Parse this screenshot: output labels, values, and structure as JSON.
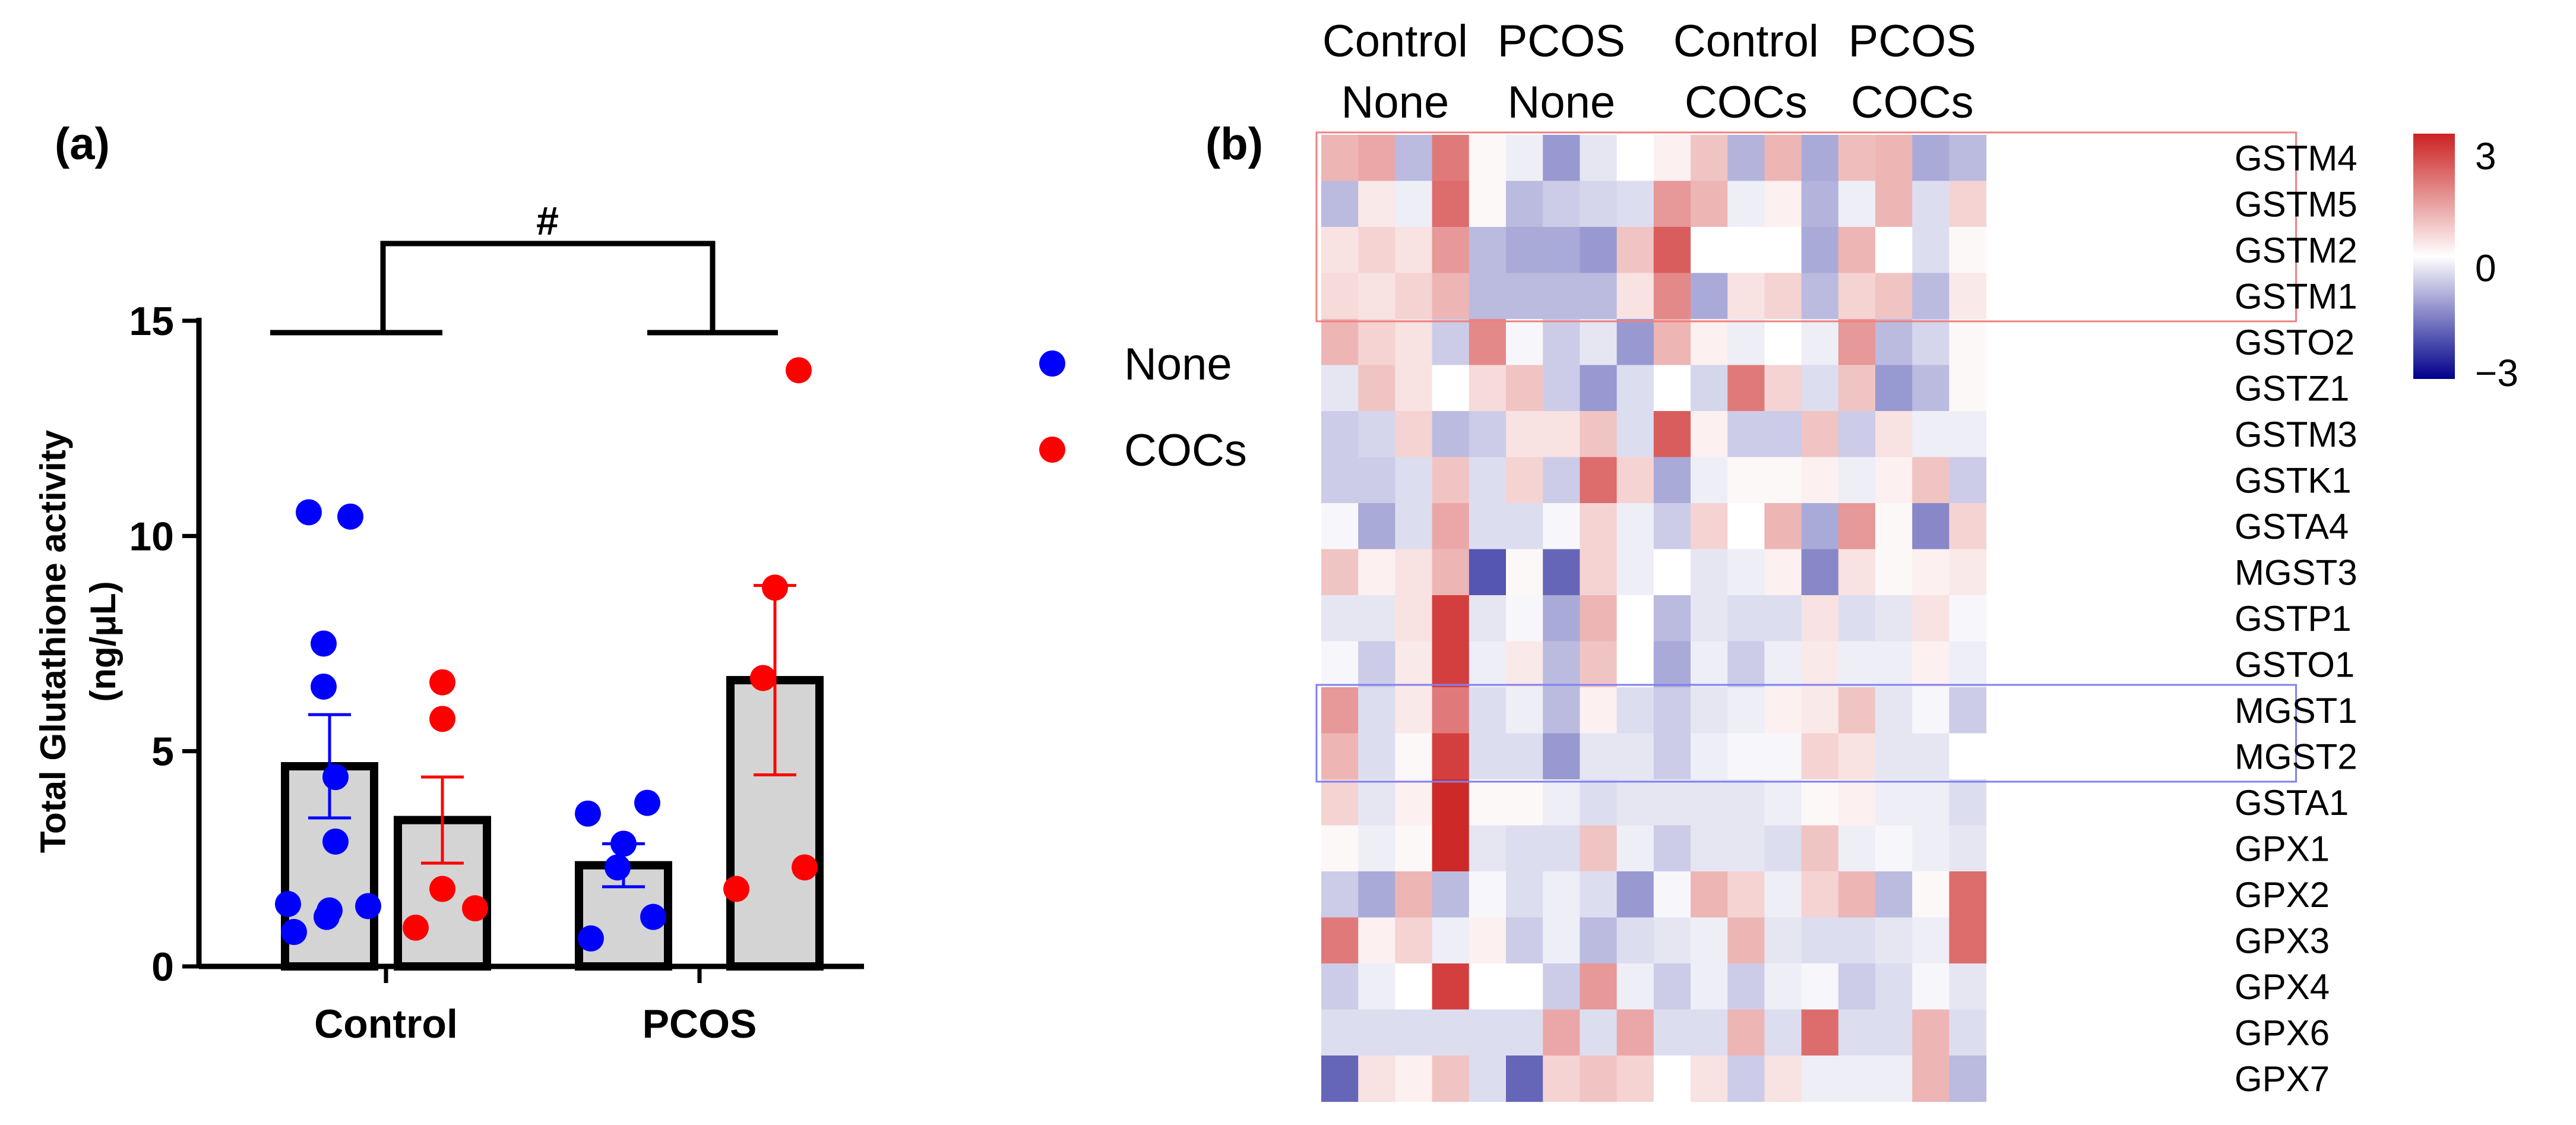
{
  "chart_data": [
    {
      "type": "bar",
      "panel_label": "(a)",
      "ylabel": "Total Glutathione activity\n(ng/μL)",
      "ylim": [
        0,
        15
      ],
      "yticks": [
        0,
        5,
        10,
        15
      ],
      "categories": [
        "Control",
        "PCOS"
      ],
      "significance": "#",
      "series": [
        {
          "name": "None",
          "color": "#0000ff",
          "values": [
            4.65,
            2.35
          ],
          "error": [
            1.2,
            0.5
          ],
          "points": [
            [
              10.55,
              10.45,
              7.5,
              6.5,
              4.4,
              2.9,
              1.45,
              1.4,
              1.3,
              1.15,
              0.8
            ],
            [
              3.55,
              3.8,
              2.85,
              2.3,
              1.15,
              0.65
            ]
          ]
        },
        {
          "name": "COCs",
          "color": "#ff0000",
          "values": [
            3.4,
            6.65
          ],
          "error": [
            1.0,
            2.2
          ],
          "points": [
            [
              6.6,
              5.75,
              1.8,
              1.35,
              0.9
            ],
            [
              13.85,
              8.8,
              6.7,
              2.3,
              1.8
            ]
          ]
        }
      ],
      "legend": [
        {
          "label": "None",
          "color": "#0000ff"
        },
        {
          "label": "COCs",
          "color": "#ff0000"
        }
      ]
    },
    {
      "type": "heatmap",
      "panel_label": "(b)",
      "column_groups": [
        {
          "line1": "Control",
          "line2": "None",
          "n": 4
        },
        {
          "line1": "PCOS",
          "line2": "None",
          "n": 5
        },
        {
          "line1": "Control",
          "line2": "COCs",
          "n": 5
        },
        {
          "line1": "PCOS",
          "line2": "COCs",
          "n": 4
        }
      ],
      "rows": [
        "GSTM4",
        "GSTM5",
        "GSTM2",
        "GSTM1",
        "GSTO2",
        "GSTZ1",
        "GSTM3",
        "GSTK1",
        "GSTA4",
        "MGST3",
        "GSTP1",
        "GSTO1",
        "MGST1",
        "MGST2",
        "GSTA1",
        "GPX1",
        "GPX2",
        "GPX3",
        "GPX4",
        "GPX6",
        "GPX7"
      ],
      "values": [
        [
          1.0,
          1.2,
          -0.8,
          1.8,
          0.1,
          -0.2,
          -1.2,
          -0.3,
          0.0,
          0.2,
          0.8,
          -0.9,
          1.0,
          -1.0,
          0.9,
          1.0,
          -1.0,
          -0.8
        ],
        [
          -0.8,
          0.3,
          -0.2,
          2.0,
          0.1,
          -0.8,
          -0.6,
          -0.5,
          -0.4,
          1.4,
          1.0,
          -0.2,
          0.2,
          -0.9,
          -0.2,
          1.0,
          -0.4,
          0.6
        ],
        [
          0.4,
          0.6,
          0.4,
          1.4,
          -0.8,
          -1.0,
          -1.0,
          -1.2,
          0.8,
          2.2,
          0.0,
          0.0,
          0.0,
          -1.0,
          1.0,
          0.0,
          -0.4,
          0.1
        ],
        [
          0.5,
          0.4,
          0.6,
          1.0,
          -0.8,
          -0.8,
          -0.8,
          -0.8,
          0.4,
          1.6,
          -1.0,
          0.4,
          0.6,
          -0.8,
          0.6,
          0.8,
          -0.8,
          0.3
        ],
        [
          1.0,
          0.6,
          0.4,
          -0.6,
          1.6,
          -0.1,
          -0.6,
          -0.3,
          -1.2,
          1.0,
          0.2,
          -0.2,
          0.0,
          -0.2,
          1.4,
          -0.8,
          -0.5,
          0.1
        ],
        [
          -0.3,
          0.8,
          0.4,
          0.0,
          0.5,
          0.8,
          -0.6,
          -1.2,
          -0.4,
          0.0,
          -0.5,
          1.8,
          0.6,
          -0.4,
          0.8,
          -1.2,
          -0.8,
          0.1
        ],
        [
          -0.6,
          -0.5,
          0.6,
          -0.8,
          -0.6,
          0.4,
          0.4,
          0.8,
          -0.4,
          2.2,
          0.2,
          -0.6,
          -0.6,
          0.8,
          -0.6,
          0.4,
          -0.2,
          -0.2
        ],
        [
          -0.6,
          -0.6,
          -0.4,
          0.8,
          -0.4,
          0.6,
          -0.6,
          2.0,
          0.6,
          -1.0,
          -0.2,
          0.1,
          0.1,
          0.2,
          -0.2,
          0.2,
          0.8,
          -0.6
        ],
        [
          -0.1,
          -1.0,
          -0.4,
          1.2,
          -0.4,
          -0.4,
          -0.1,
          0.6,
          -0.2,
          -0.6,
          0.6,
          0.0,
          1.0,
          -1.0,
          1.4,
          0.1,
          -1.4,
          0.6
        ],
        [
          0.8,
          0.2,
          0.4,
          1.0,
          -2.0,
          0.1,
          -1.8,
          0.6,
          -0.2,
          0.0,
          -0.3,
          -0.2,
          0.2,
          -1.4,
          0.4,
          0.1,
          0.2,
          0.3
        ],
        [
          -0.3,
          -0.3,
          0.4,
          2.6,
          -0.3,
          -0.1,
          -1.0,
          1.0,
          0.0,
          -0.8,
          -0.3,
          -0.4,
          -0.4,
          0.4,
          -0.4,
          -0.3,
          0.4,
          -0.1
        ],
        [
          -0.1,
          -0.6,
          0.3,
          2.6,
          -0.2,
          0.3,
          -0.8,
          0.8,
          0.0,
          -1.0,
          -0.2,
          -0.6,
          -0.2,
          0.3,
          -0.2,
          -0.2,
          0.2,
          -0.2
        ],
        [
          1.4,
          -0.4,
          0.3,
          1.8,
          -0.4,
          -0.2,
          -0.8,
          0.2,
          -0.4,
          -0.6,
          -0.3,
          -0.2,
          0.2,
          0.3,
          0.8,
          -0.3,
          -0.1,
          -0.6
        ],
        [
          1.0,
          -0.4,
          0.1,
          2.6,
          -0.4,
          -0.4,
          -1.2,
          -0.3,
          -0.3,
          -0.6,
          -0.2,
          -0.1,
          -0.1,
          0.6,
          0.4,
          -0.3,
          -0.3,
          0.0
        ],
        [
          0.6,
          -0.3,
          0.2,
          2.9,
          0.1,
          0.1,
          -0.2,
          -0.4,
          -0.3,
          -0.3,
          -0.3,
          -0.3,
          -0.2,
          0.1,
          0.2,
          -0.2,
          -0.2,
          -0.4
        ],
        [
          0.1,
          -0.2,
          0.1,
          2.9,
          -0.3,
          -0.4,
          -0.4,
          0.8,
          -0.2,
          -0.6,
          -0.3,
          -0.3,
          -0.4,
          0.8,
          -0.2,
          -0.1,
          -0.2,
          -0.3
        ],
        [
          -0.6,
          -1.0,
          1.0,
          -0.8,
          -0.1,
          -0.4,
          -0.2,
          -0.4,
          -1.2,
          -0.1,
          1.0,
          0.6,
          -0.2,
          0.6,
          1.0,
          -0.8,
          0.1,
          2.0
        ],
        [
          1.8,
          0.2,
          0.6,
          -0.2,
          0.2,
          -0.6,
          -0.2,
          -0.8,
          -0.4,
          -0.3,
          -0.2,
          1.0,
          -0.3,
          -0.4,
          -0.4,
          -0.3,
          -0.2,
          2.0
        ],
        [
          -0.6,
          -0.2,
          0.0,
          2.6,
          0.0,
          0.0,
          -0.6,
          1.4,
          -0.2,
          -0.6,
          -0.2,
          -0.6,
          -0.2,
          -0.1,
          -0.6,
          -0.4,
          -0.1,
          -0.3
        ],
        [
          -0.4,
          -0.4,
          -0.4,
          -0.4,
          -0.4,
          -0.4,
          1.2,
          -0.4,
          1.2,
          -0.4,
          -0.4,
          1.0,
          -0.4,
          2.0,
          -0.4,
          -0.4,
          1.0,
          -0.4
        ],
        [
          -1.8,
          0.4,
          0.2,
          0.8,
          -0.4,
          -1.8,
          0.6,
          0.8,
          0.6,
          0.0,
          0.4,
          -0.6,
          0.4,
          -0.2,
          -0.2,
          -0.2,
          1.0,
          -0.8
        ]
      ],
      "colorbar": {
        "min": -3,
        "max": 3,
        "ticks": [
          "3",
          "0",
          "−3"
        ],
        "colors": [
          "#00008b",
          "#ffffff",
          "#cc2222"
        ]
      },
      "highlights": [
        {
          "rows": [
            0,
            3
          ],
          "color": "#f08080"
        },
        {
          "rows": [
            12,
            13
          ],
          "color": "#8080f0"
        }
      ]
    }
  ]
}
